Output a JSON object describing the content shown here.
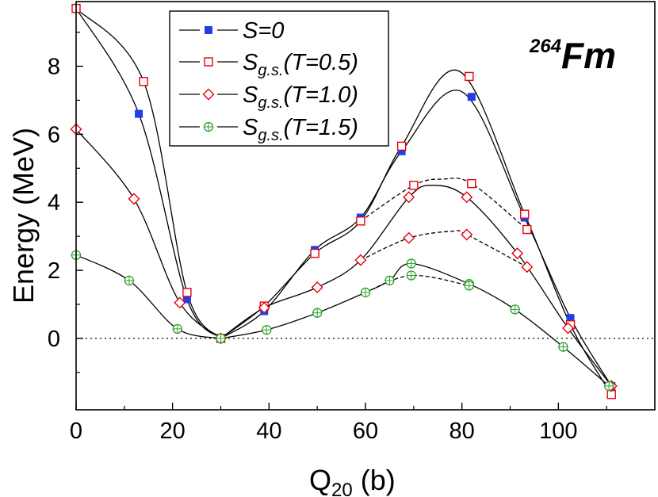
{
  "chart_data": {
    "type": "line",
    "nucleus": {
      "mass": "264",
      "symbol": "Fm"
    },
    "xlabel": {
      "main": "Q",
      "sub": "20",
      "unit": " (b)"
    },
    "ylabel": "Energy (MeV)",
    "xlim": [
      0,
      120
    ],
    "ylim": [
      -2.1,
      9.9
    ],
    "xticks": [
      0,
      20,
      40,
      60,
      80,
      100
    ],
    "yticks": [
      0,
      2,
      4,
      6,
      8
    ],
    "reference_line": {
      "y": 0,
      "style": "dotted"
    },
    "series": [
      {
        "name": "S=0",
        "legend": {
          "main": "S=0",
          "sub": "",
          "paren": ""
        },
        "marker": "filled-square",
        "color": "#1f3fe8",
        "x": [
          0,
          13,
          23,
          30,
          39,
          49.5,
          59,
          67.5,
          82,
          93,
          102.5,
          111
        ],
        "y": [
          9.7,
          6.6,
          1.15,
          0.0,
          0.8,
          2.6,
          3.55,
          5.5,
          7.1,
          3.55,
          0.6,
          -1.4
        ],
        "curves": [
          {
            "dash": "solid",
            "x": [
              0,
              13,
              23,
              30
            ],
            "y": [
              9.7,
              6.6,
              1.15,
              0.0
            ]
          },
          {
            "dash": "solid",
            "x": [
              30,
              39,
              49.5,
              59,
              67.5,
              80,
              93,
              102.5,
              111
            ],
            "y": [
              0.0,
              0.8,
              2.6,
              3.55,
              5.5,
              7.25,
              3.55,
              0.6,
              -1.4
            ]
          }
        ]
      },
      {
        "name": "Sg.s.(T=0.5)",
        "legend": {
          "main": "S",
          "sub": "g.s.",
          "paren": "(T=0.5)"
        },
        "marker": "open-square",
        "color": "#e8000b",
        "x": [
          0,
          14,
          23,
          30,
          39,
          49.5,
          59,
          67.5,
          70,
          81.5,
          82,
          93,
          93.5,
          102.5,
          111
        ],
        "y": [
          9.7,
          7.55,
          1.35,
          0.0,
          0.95,
          2.5,
          3.45,
          5.65,
          4.5,
          7.7,
          4.55,
          3.65,
          3.2,
          0.4,
          -1.65
        ],
        "curves": [
          {
            "dash": "solid",
            "x": [
              0,
              14,
              23,
              30
            ],
            "y": [
              9.7,
              7.55,
              1.35,
              0.0
            ]
          },
          {
            "dash": "solid",
            "x": [
              30,
              39,
              49.5,
              59,
              67.5,
              79.5,
              93,
              102.5,
              111
            ],
            "y": [
              0.0,
              0.95,
              2.5,
              3.45,
              5.65,
              7.85,
              3.65,
              0.4,
              -1.65
            ]
          },
          {
            "dash": "dashed",
            "x": [
              59,
              70,
              76,
              82,
              93.5
            ],
            "y": [
              3.45,
              4.5,
              4.68,
              4.55,
              3.2
            ]
          }
        ]
      },
      {
        "name": "Sg.s.(T=1.0)",
        "legend": {
          "main": "S",
          "sub": "g.s.",
          "paren": "(T=1.0)"
        },
        "marker": "open-diamond",
        "color": "#e8000b",
        "x": [
          0,
          12,
          21.5,
          30,
          39,
          50,
          59,
          69,
          81,
          69,
          81,
          91.5,
          93.5,
          102,
          111
        ],
        "y": [
          6.15,
          4.1,
          1.05,
          0.0,
          0.9,
          1.5,
          2.3,
          4.15,
          4.15,
          2.95,
          3.05,
          2.5,
          2.1,
          0.3,
          -1.4
        ],
        "curves": [
          {
            "dash": "solid",
            "x": [
              0,
              12,
              21.5,
              30
            ],
            "y": [
              6.15,
              4.1,
              1.05,
              0.0
            ]
          },
          {
            "dash": "solid",
            "x": [
              30,
              39,
              50,
              59,
              69,
              74,
              81,
              91.5,
              102,
              111
            ],
            "y": [
              0.0,
              0.9,
              1.5,
              2.3,
              4.15,
              4.5,
              4.15,
              2.5,
              0.3,
              -1.4
            ]
          },
          {
            "dash": "dashed",
            "x": [
              59,
              69,
              78,
              81,
              93.5
            ],
            "y": [
              2.3,
              2.95,
              3.15,
              3.05,
              2.1
            ]
          }
        ]
      },
      {
        "name": "Sg.s.(T=1.5)",
        "legend": {
          "main": "S",
          "sub": "g.s.",
          "paren": "(T=1.5)"
        },
        "marker": "open-circle-cross",
        "color": "#2ca02c",
        "x": [
          0,
          11,
          21,
          30,
          39.5,
          50,
          60,
          65,
          69.5,
          81.5,
          69.5,
          81.5,
          91,
          101,
          110.5
        ],
        "y": [
          2.45,
          1.7,
          0.28,
          0.0,
          0.25,
          0.75,
          1.35,
          1.7,
          2.2,
          1.6,
          1.85,
          1.55,
          0.85,
          -0.25,
          -1.4
        ],
        "curves": [
          {
            "dash": "solid",
            "x": [
              0,
              11,
              21,
              30
            ],
            "y": [
              2.45,
              1.7,
              0.28,
              0.0
            ]
          },
          {
            "dash": "solid",
            "x": [
              30,
              39.5,
              50,
              60,
              65,
              69.5,
              81.5,
              91,
              101,
              110.5
            ],
            "y": [
              0.0,
              0.25,
              0.75,
              1.35,
              1.7,
              2.2,
              1.6,
              0.85,
              -0.25,
              -1.4
            ]
          },
          {
            "dash": "dashed",
            "x": [
              60,
              69.5,
              81.5
            ],
            "y": [
              1.35,
              1.85,
              1.55
            ]
          }
        ]
      }
    ]
  }
}
